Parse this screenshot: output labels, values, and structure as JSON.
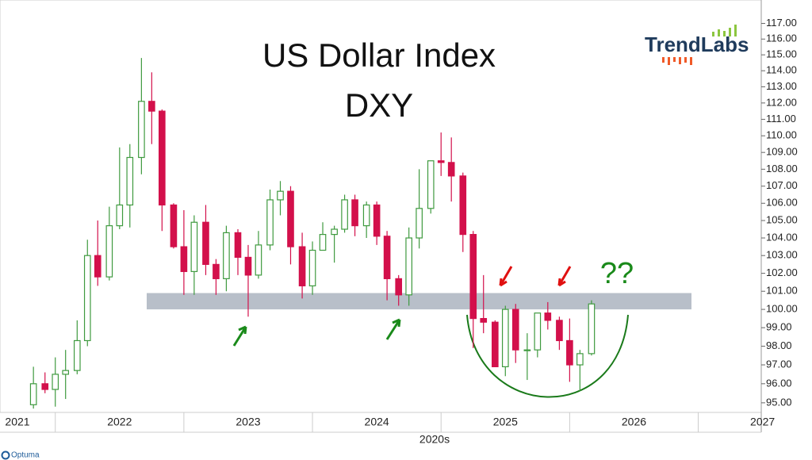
{
  "chart_data": {
    "type": "candlestick",
    "title": "US Dollar Index",
    "subtitle": "DXY",
    "x_axis_label": "2020s",
    "annotation": "??",
    "logo": "TrendLabs",
    "footer": "Optuma",
    "log_scale": true,
    "up_color": "#3f9a3f",
    "down_color": "#d3104b",
    "zone": [
      100.0,
      100.9
    ],
    "zone_color": "#b8bfc9",
    "x": [
      2021.83,
      2021.92,
      2022.0,
      2022.08,
      2022.17,
      2022.25,
      2022.33,
      2022.42,
      2022.5,
      2022.58,
      2022.67,
      2022.75,
      2022.83,
      2022.92,
      2023.0,
      2023.08,
      2023.17,
      2023.25,
      2023.33,
      2023.42,
      2023.5,
      2023.58,
      2023.67,
      2023.75,
      2023.83,
      2023.92,
      2024.0,
      2024.08,
      2024.17,
      2024.25,
      2024.33,
      2024.42,
      2024.5,
      2024.58,
      2024.67,
      2024.75,
      2024.83,
      2024.92,
      2025.0,
      2025.08,
      2025.17,
      2025.25,
      2025.33,
      2025.42,
      2025.5,
      2025.58,
      2025.67,
      2025.75,
      2025.83,
      2025.92,
      2026.0,
      2026.08,
      2026.17
    ],
    "open": [
      94.9,
      96.0,
      95.7,
      96.5,
      96.7,
      98.3,
      103.0,
      101.8,
      104.7,
      105.9,
      108.7,
      112.1,
      111.5,
      105.9,
      103.5,
      102.1,
      104.9,
      102.5,
      101.7,
      104.3,
      102.9,
      101.9,
      103.6,
      106.2,
      106.7,
      103.5,
      101.3,
      103.3,
      104.2,
      104.5,
      106.2,
      104.7,
      105.9,
      104.1,
      101.7,
      100.8,
      104.0,
      105.7,
      108.5,
      108.4,
      107.6,
      104.2,
      99.5,
      99.3,
      96.9,
      100.0,
      97.8,
      97.8,
      99.8,
      99.4,
      98.3,
      97.0,
      97.6
    ],
    "high": [
      96.9,
      96.6,
      97.4,
      97.8,
      99.4,
      103.9,
      105.0,
      105.8,
      109.3,
      109.5,
      114.8,
      113.9,
      111.6,
      106.0,
      105.6,
      105.3,
      105.9,
      102.8,
      104.7,
      104.5,
      103.6,
      104.4,
      106.8,
      107.3,
      107.0,
      104.3,
      103.8,
      104.9,
      104.7,
      106.5,
      106.5,
      106.1,
      106.1,
      104.4,
      101.9,
      104.6,
      108.0,
      108.5,
      110.2,
      109.9,
      107.8,
      104.4,
      101.9,
      99.4,
      100.2,
      100.3,
      98.7,
      99.8,
      100.4,
      99.6,
      99.5,
      97.8,
      100.5
    ],
    "low": [
      94.7,
      95.5,
      94.8,
      95.2,
      96.5,
      98.0,
      101.3,
      101.6,
      104.5,
      104.6,
      107.7,
      109.5,
      104.4,
      103.4,
      100.8,
      100.8,
      101.9,
      100.8,
      101.0,
      101.9,
      99.6,
      101.7,
      103.3,
      105.3,
      102.5,
      100.6,
      100.8,
      103.3,
      102.6,
      104.3,
      104.1,
      104.0,
      103.6,
      100.5,
      100.2,
      100.2,
      103.4,
      105.4,
      107.6,
      106.1,
      103.2,
      97.9,
      98.7,
      96.9,
      96.4,
      97.1,
      96.2,
      97.4,
      98.9,
      97.8,
      96.1,
      95.6,
      97.5
    ],
    "close": [
      96.0,
      95.7,
      96.5,
      96.7,
      98.3,
      103.0,
      101.8,
      104.7,
      105.9,
      108.7,
      112.1,
      111.5,
      105.9,
      103.5,
      102.1,
      104.9,
      102.5,
      101.7,
      104.3,
      102.9,
      101.9,
      103.6,
      106.2,
      106.7,
      103.5,
      101.3,
      103.3,
      104.2,
      104.5,
      106.2,
      104.7,
      105.9,
      104.1,
      101.7,
      100.8,
      104.0,
      105.7,
      108.5,
      108.4,
      107.6,
      104.2,
      99.5,
      99.3,
      96.9,
      100.0,
      97.8,
      97.8,
      99.8,
      99.4,
      98.3,
      97.0,
      97.6,
      100.3
    ],
    "xlim": [
      2021.57,
      2027.49
    ],
    "xticks": [
      2021,
      2022,
      2023,
      2024,
      2025,
      2026,
      2027
    ],
    "ylim": [
      94.5,
      118.0
    ],
    "yticks": [
      {
        "value": 95,
        "label": "95.00"
      },
      {
        "value": 96,
        "label": "96.00"
      },
      {
        "value": 97,
        "label": "97.00"
      },
      {
        "value": 98,
        "label": "98.00"
      },
      {
        "value": 99,
        "label": "99.00"
      },
      {
        "value": 100,
        "label": "100.00"
      },
      {
        "value": 101,
        "label": "101.00"
      },
      {
        "value": 102,
        "label": "102.00"
      },
      {
        "value": 103,
        "label": "103.00"
      },
      {
        "value": 104,
        "label": "104.00"
      },
      {
        "value": 105,
        "label": "105.00"
      },
      {
        "value": 106,
        "label": "106.00"
      },
      {
        "value": 107,
        "label": "107.00"
      },
      {
        "value": 108,
        "label": "108.00"
      },
      {
        "value": 109,
        "label": "109.00"
      },
      {
        "value": 110,
        "label": "110.00"
      },
      {
        "value": 111,
        "label": "111.00"
      },
      {
        "value": 112,
        "label": "112.00"
      },
      {
        "value": 113,
        "label": "113.00"
      },
      {
        "value": 114,
        "label": "114.00"
      },
      {
        "value": 115,
        "label": "115.00"
      },
      {
        "value": 116,
        "label": "116.00"
      },
      {
        "value": 117,
        "label": "117.00"
      }
    ]
  }
}
